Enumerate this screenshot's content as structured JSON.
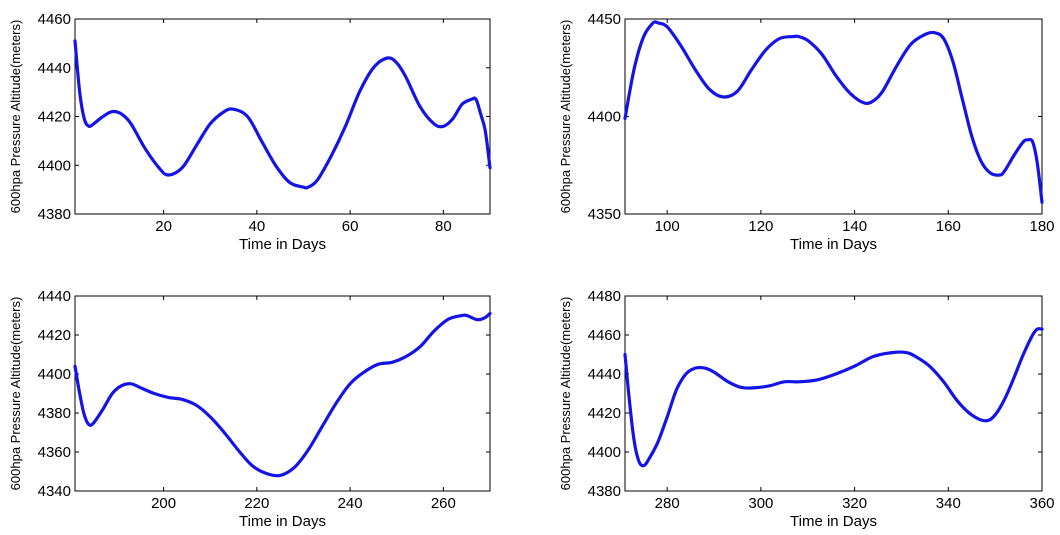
{
  "chart_data": [
    {
      "type": "line",
      "xlabel": "Time in Days",
      "ylabel": "600hpa Pressure Altitude(meters)",
      "xlim": [
        1,
        90
      ],
      "ylim": [
        4380,
        4460
      ],
      "xticks": [
        20,
        40,
        60,
        80
      ],
      "yticks": [
        4380,
        4400,
        4420,
        4440,
        4460
      ],
      "grid": false,
      "line_color": "#1414e6",
      "series": [
        {
          "x": [
            1,
            2,
            3,
            4,
            5,
            7,
            9,
            11,
            13,
            16,
            19,
            21,
            24,
            27,
            30,
            33,
            35,
            38,
            41,
            44,
            47,
            50,
            51,
            53,
            56,
            59,
            62,
            65,
            68,
            70,
            72,
            75,
            78,
            80,
            82,
            84,
            86,
            87,
            88,
            89,
            90
          ],
          "y": [
            4451,
            4430,
            4419,
            4416,
            4417,
            4420,
            4422,
            4421,
            4417,
            4407,
            4399,
            4396,
            4399,
            4408,
            4417,
            4422,
            4423,
            4420,
            4410,
            4400,
            4393,
            4391,
            4391,
            4394,
            4404,
            4416,
            4430,
            4440,
            4444,
            4442,
            4436,
            4424,
            4417,
            4416,
            4419,
            4425,
            4427,
            4427,
            4421,
            4414,
            4399
          ]
        }
      ]
    },
    {
      "type": "line",
      "xlabel": "Time in Days",
      "ylabel": "600hpa Pressure Altitude(meters)",
      "xlim": [
        91,
        180
      ],
      "ylim": [
        4350,
        4450
      ],
      "xticks": [
        100,
        120,
        140,
        160,
        180
      ],
      "yticks": [
        4350,
        4400,
        4450
      ],
      "grid": false,
      "line_color": "#1414e6",
      "series": [
        {
          "x": [
            91,
            93,
            95,
            97,
            98,
            100,
            103,
            106,
            109,
            112,
            115,
            118,
            121,
            124,
            127,
            128,
            130,
            133,
            136,
            139,
            142,
            144,
            146,
            149,
            152,
            155,
            157,
            159,
            161,
            163,
            165,
            167,
            169,
            171,
            172,
            174,
            176,
            177,
            178,
            179,
            180
          ],
          "y": [
            4399,
            4425,
            4441,
            4448,
            4448,
            4446,
            4436,
            4424,
            4414,
            4410,
            4413,
            4424,
            4434,
            4440,
            4441,
            4441,
            4439,
            4432,
            4421,
            4412,
            4407,
            4408,
            4413,
            4426,
            4437,
            4442,
            4443,
            4440,
            4428,
            4409,
            4390,
            4377,
            4371,
            4370,
            4372,
            4380,
            4387,
            4388,
            4387,
            4376,
            4356
          ]
        }
      ]
    },
    {
      "type": "line",
      "xlabel": "Time in Days",
      "ylabel": "600hpa Pressure Altitude(meters)",
      "xlim": [
        181,
        270
      ],
      "ylim": [
        4340,
        4440
      ],
      "xticks": [
        200,
        220,
        240,
        260
      ],
      "yticks": [
        4340,
        4360,
        4380,
        4400,
        4420,
        4440
      ],
      "grid": false,
      "line_color": "#1414e6",
      "series": [
        {
          "x": [
            181,
            182,
            183,
            184,
            185,
            187,
            189,
            191,
            193,
            195,
            198,
            201,
            204,
            207,
            210,
            213,
            216,
            219,
            222,
            225,
            228,
            231,
            234,
            237,
            240,
            243,
            246,
            249,
            252,
            255,
            258,
            261,
            264,
            265,
            267,
            268,
            269,
            270
          ],
          "y": [
            4404,
            4390,
            4379,
            4374,
            4375,
            4382,
            4390,
            4394,
            4395,
            4393,
            4390,
            4388,
            4387,
            4384,
            4378,
            4370,
            4361,
            4353,
            4349,
            4348,
            4352,
            4361,
            4373,
            4385,
            4395,
            4401,
            4405,
            4406,
            4409,
            4414,
            4422,
            4428,
            4430,
            4430,
            4428,
            4428,
            4429,
            4431
          ]
        }
      ]
    },
    {
      "type": "line",
      "xlabel": "Time in Days",
      "ylabel": "600hpa Pressure Altitude(meters)",
      "xlim": [
        271,
        360
      ],
      "ylim": [
        4380,
        4480
      ],
      "xticks": [
        280,
        300,
        320,
        340,
        360
      ],
      "yticks": [
        4380,
        4400,
        4420,
        4440,
        4460,
        4480
      ],
      "grid": false,
      "line_color": "#1414e6",
      "series": [
        {
          "x": [
            271,
            272,
            273,
            274,
            275,
            276,
            278,
            280,
            282,
            284,
            286,
            288,
            290,
            293,
            296,
            299,
            302,
            305,
            308,
            312,
            316,
            320,
            324,
            328,
            331,
            333,
            336,
            339,
            342,
            345,
            348,
            350,
            352,
            354,
            356,
            358,
            359,
            360
          ],
          "y": [
            4450,
            4425,
            4405,
            4395,
            4393,
            4396,
            4405,
            4418,
            4432,
            4440,
            4443,
            4443,
            4441,
            4436,
            4433,
            4433,
            4434,
            4436,
            4436,
            4437,
            4440,
            4444,
            4449,
            4451,
            4451,
            4449,
            4444,
            4436,
            4426,
            4419,
            4416,
            4419,
            4427,
            4438,
            4450,
            4460,
            4463,
            4463
          ]
        }
      ]
    }
  ]
}
